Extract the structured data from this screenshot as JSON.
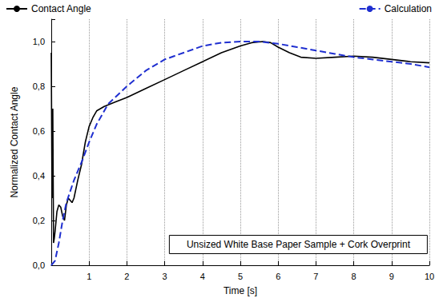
{
  "chart_data": {
    "type": "line",
    "x_label": "Time [s]",
    "y_label": "Normalized Contact Angle",
    "annotation": "Unsized White Base Paper Sample + Cork Overprint",
    "xlim": [
      0,
      10
    ],
    "xticks": [
      1,
      2,
      3,
      4,
      5,
      6,
      7,
      8,
      9,
      10
    ],
    "ylim": [
      0,
      1.1
    ],
    "yticks": [
      {
        "value": 0,
        "label": "0,0"
      },
      {
        "value": 0.2,
        "label": "0,2"
      },
      {
        "value": 0.4,
        "label": "0,4"
      },
      {
        "value": 0.6,
        "label": "0,6"
      },
      {
        "value": 0.8,
        "label": "0,8"
      },
      {
        "value": 1.0,
        "label": "1,0"
      }
    ],
    "grid": "x",
    "legend": "top",
    "series": [
      {
        "name": "Contact Angle",
        "color": "#000000",
        "line_style": "solid",
        "x": [
          0,
          0.02,
          0.04,
          0.06,
          0.08,
          0.1,
          0.15,
          0.2,
          0.25,
          0.3,
          0.35,
          0.4,
          0.45,
          0.5,
          0.55,
          0.6,
          0.7,
          0.8,
          0.9,
          1.0,
          1.1,
          1.2,
          1.4,
          1.7,
          2,
          2.5,
          3,
          3.5,
          4,
          4.5,
          5,
          5.3,
          5.6,
          5.8,
          6,
          6.3,
          6.6,
          7,
          7.5,
          8,
          8.5,
          9,
          9.5,
          10
        ],
        "values": [
          0.95,
          0.3,
          0.7,
          0.1,
          0.12,
          0.15,
          0.24,
          0.27,
          0.26,
          0.22,
          0.2,
          0.27,
          0.3,
          0.29,
          0.28,
          0.3,
          0.38,
          0.45,
          0.55,
          0.62,
          0.66,
          0.69,
          0.71,
          0.73,
          0.75,
          0.79,
          0.83,
          0.87,
          0.91,
          0.95,
          0.98,
          0.995,
          1.0,
          0.995,
          0.975,
          0.95,
          0.93,
          0.925,
          0.93,
          0.935,
          0.93,
          0.92,
          0.91,
          0.905
        ]
      },
      {
        "name": "Calculation",
        "color": "#1f2fd0",
        "line_style": "dashed",
        "x": [
          0,
          0.1,
          0.2,
          0.3,
          0.4,
          0.5,
          0.6,
          0.8,
          1.0,
          1.2,
          1.5,
          2,
          2.5,
          3,
          3.5,
          4,
          4.5,
          5,
          5.5,
          6,
          6.5,
          7,
          7.5,
          8,
          8.5,
          9,
          9.5,
          10
        ],
        "values": [
          0,
          0.02,
          0.1,
          0.2,
          0.28,
          0.33,
          0.38,
          0.46,
          0.55,
          0.63,
          0.72,
          0.8,
          0.87,
          0.92,
          0.95,
          0.98,
          0.995,
          1.0,
          1.0,
          0.99,
          0.975,
          0.96,
          0.945,
          0.93,
          0.92,
          0.91,
          0.9,
          0.885
        ]
      }
    ]
  }
}
